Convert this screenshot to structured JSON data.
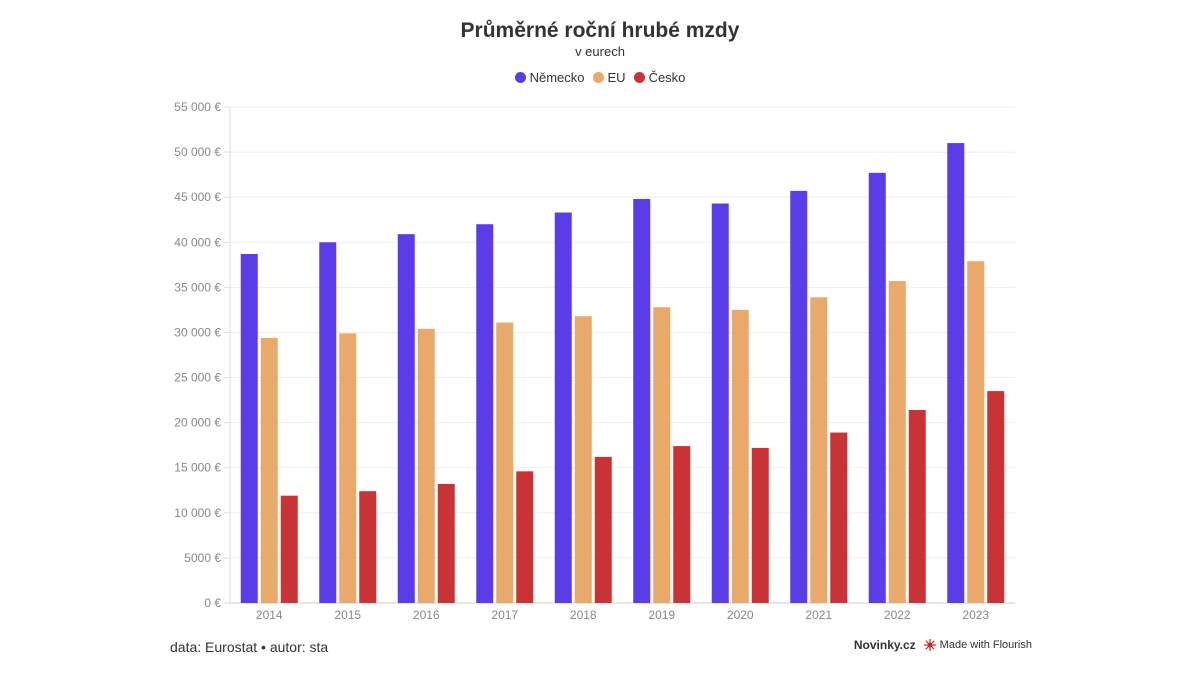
{
  "header": {
    "title": "Průměrné roční hrubé mzdy",
    "subtitle": "v eurech"
  },
  "footer": {
    "source": "data: Eurostat • autor: sta",
    "publisher": "Novinky.cz",
    "credit": "Made with Flourish"
  },
  "chart_data": {
    "type": "bar",
    "title": "Průměrné roční hrubé mzdy",
    "subtitle": "v eurech",
    "xlabel": "",
    "ylabel": "",
    "ylim": [
      0,
      55000
    ],
    "yticks": [
      {
        "value": 0,
        "label": "0 €"
      },
      {
        "value": 5000,
        "label": "5000 €"
      },
      {
        "value": 10000,
        "label": "10 000 €"
      },
      {
        "value": 15000,
        "label": "15 000 €"
      },
      {
        "value": 20000,
        "label": "20 000 €"
      },
      {
        "value": 25000,
        "label": "25 000 €"
      },
      {
        "value": 30000,
        "label": "30 000 €"
      },
      {
        "value": 35000,
        "label": "35 000 €"
      },
      {
        "value": 40000,
        "label": "40 000 €"
      },
      {
        "value": 45000,
        "label": "45 000 €"
      },
      {
        "value": 50000,
        "label": "50 000 €"
      },
      {
        "value": 55000,
        "label": "55 000 €"
      }
    ],
    "categories": [
      "2014",
      "2015",
      "2016",
      "2017",
      "2018",
      "2019",
      "2020",
      "2021",
      "2022",
      "2023"
    ],
    "series": [
      {
        "name": "Německo",
        "color": "#5a3de8",
        "values": [
          38700,
          40000,
          40900,
          42000,
          43300,
          44800,
          44300,
          45700,
          47700,
          51000
        ]
      },
      {
        "name": "EU",
        "color": "#e9a96b",
        "values": [
          29400,
          29900,
          30400,
          31100,
          31800,
          32800,
          32500,
          33900,
          35700,
          37900
        ]
      },
      {
        "name": "Česko",
        "color": "#c93336",
        "values": [
          11900,
          12400,
          13200,
          14600,
          16200,
          17400,
          17200,
          18900,
          21400,
          23500
        ]
      }
    ],
    "legend_position": "top-center",
    "grid": true
  }
}
